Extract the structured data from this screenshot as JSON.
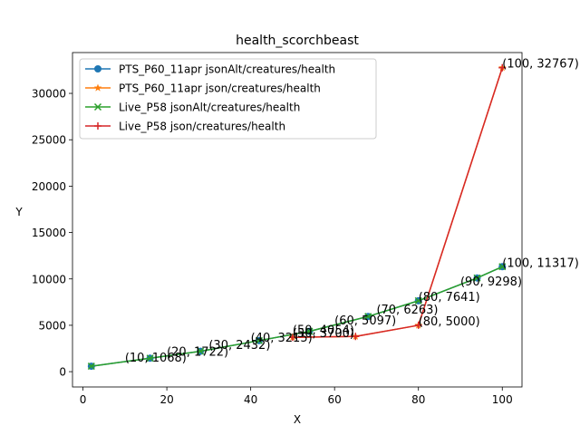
{
  "chart_data": {
    "type": "line",
    "title": "health_scorchbeast",
    "xlabel": "X",
    "ylabel": "Y",
    "xlim": [
      -2.5,
      104.7
    ],
    "ylim": [
      -1650,
      34400
    ],
    "x_ticks": [
      0,
      20,
      40,
      60,
      80,
      100
    ],
    "y_ticks": [
      0,
      5000,
      10000,
      15000,
      20000,
      25000,
      30000
    ],
    "grid": false,
    "legend_position": "top-left",
    "series": [
      {
        "name": "PTS_P60_11apr jsonAlt/creatures/health",
        "color": "#1f77b4",
        "marker": "circle",
        "x": [
          2,
          16,
          28,
          42,
          54,
          68,
          80,
          94,
          100
        ],
        "y": [
          588,
          1450,
          2200,
          3350,
          4350,
          5950,
          7641,
          10100,
          11317
        ]
      },
      {
        "name": "PTS_P60_11apr json/creatures/health",
        "color": "#ff7f0e",
        "marker": "star",
        "x": [
          50,
          65,
          80,
          100
        ],
        "y": [
          3700,
          3800,
          5000,
          32767
        ]
      },
      {
        "name": "Live_P58 jsonAlt/creatures/health",
        "color": "#2ca02c",
        "marker": "x",
        "x": [
          2,
          16,
          28,
          42,
          54,
          68,
          80,
          94,
          100
        ],
        "y": [
          588,
          1450,
          2200,
          3350,
          4350,
          5950,
          7641,
          10100,
          11317
        ]
      },
      {
        "name": "Live_P58 json/creatures/health",
        "color": "#d62728",
        "marker": "plus",
        "x": [
          50,
          65,
          80,
          100
        ],
        "y": [
          3700,
          3800,
          5000,
          32767
        ]
      }
    ],
    "annotations": [
      {
        "text": "(10, 1068)",
        "x": 10,
        "y": 1068
      },
      {
        "text": "(20, 1722)",
        "x": 20,
        "y": 1722
      },
      {
        "text": "(30, 2432)",
        "x": 30,
        "y": 2432
      },
      {
        "text": "(40, 3215)",
        "x": 40,
        "y": 3215
      },
      {
        "text": "(50, 3700)",
        "x": 50,
        "y": 3700
      },
      {
        "text": "(50, 4054)",
        "x": 50,
        "y": 4054
      },
      {
        "text": "(60, 5097)",
        "x": 60,
        "y": 5097
      },
      {
        "text": "(70, 6263)",
        "x": 70,
        "y": 6263
      },
      {
        "text": "(80, 7641)",
        "x": 80,
        "y": 7641
      },
      {
        "text": "(80, 5000)",
        "x": 80,
        "y": 5000
      },
      {
        "text": "(90, 9298)",
        "x": 90,
        "y": 9298
      },
      {
        "text": "(100, 11317)",
        "x": 100,
        "y": 11317
      },
      {
        "text": "(100, 32767)",
        "x": 100,
        "y": 32767
      }
    ]
  }
}
